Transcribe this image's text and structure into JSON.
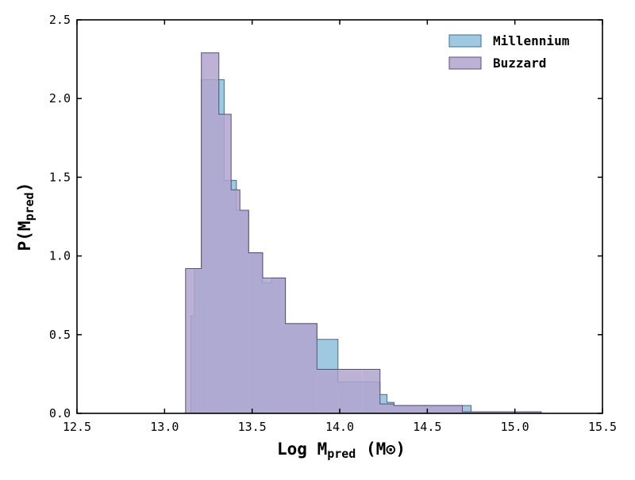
{
  "chart_data": {
    "type": "histogram",
    "xlabel": {
      "main": "Log M",
      "sub": "pred",
      "rest": " (M",
      "sun": "⊙",
      "close": ")"
    },
    "ylabel": {
      "main": "P(M",
      "sub": "pred",
      "close": ")"
    },
    "xlim": [
      12.5,
      15.5
    ],
    "ylim": [
      0.0,
      2.5
    ],
    "xticks": [
      "12.5",
      "13.0",
      "13.5",
      "14.0",
      "14.5",
      "15.0",
      "15.5"
    ],
    "xtick_values": [
      12.5,
      13.0,
      13.5,
      14.0,
      14.5,
      15.0,
      15.5
    ],
    "yticks": [
      "0.0",
      "0.5",
      "1.0",
      "1.5",
      "2.0",
      "2.5"
    ],
    "ytick_values": [
      0.0,
      0.5,
      1.0,
      1.5,
      2.0,
      2.5
    ],
    "grid": false,
    "legend_position": "top-right",
    "series": [
      {
        "name": "Millennium",
        "color": "#87bcd9",
        "edge_color": "#3e6f86",
        "alpha": 0.8,
        "bins": [
          [
            13.15,
            13.17,
            0.62
          ],
          [
            13.17,
            13.21,
            0.92
          ],
          [
            13.21,
            13.28,
            2.12
          ],
          [
            13.28,
            13.34,
            2.12
          ],
          [
            13.34,
            13.41,
            1.48
          ],
          [
            13.41,
            13.48,
            1.29
          ],
          [
            13.48,
            13.56,
            1.02
          ],
          [
            13.56,
            13.61,
            0.83
          ],
          [
            13.61,
            13.69,
            0.86
          ],
          [
            13.69,
            13.87,
            0.57
          ],
          [
            13.87,
            13.99,
            0.47
          ],
          [
            13.99,
            14.13,
            0.2
          ],
          [
            14.13,
            14.23,
            0.2
          ],
          [
            14.23,
            14.27,
            0.12
          ],
          [
            14.27,
            14.31,
            0.07
          ],
          [
            14.31,
            14.7,
            0.05
          ],
          [
            14.7,
            14.75,
            0.05
          ],
          [
            14.75,
            15.15,
            0.01
          ]
        ]
      },
      {
        "name": "Buzzard",
        "color": "#b1a4cf",
        "edge_color": "#5a4f74",
        "alpha": 0.85,
        "bins": [
          [
            13.12,
            13.21,
            0.92
          ],
          [
            13.21,
            13.31,
            2.29
          ],
          [
            13.31,
            13.38,
            1.9
          ],
          [
            13.38,
            13.43,
            1.42
          ],
          [
            13.43,
            13.48,
            1.29
          ],
          [
            13.48,
            13.56,
            1.02
          ],
          [
            13.56,
            13.61,
            0.86
          ],
          [
            13.61,
            13.69,
            0.86
          ],
          [
            13.69,
            13.87,
            0.57
          ],
          [
            13.87,
            13.99,
            0.28
          ],
          [
            13.99,
            14.13,
            0.28
          ],
          [
            14.13,
            14.23,
            0.28
          ],
          [
            14.23,
            14.31,
            0.06
          ],
          [
            14.31,
            14.7,
            0.05
          ],
          [
            14.7,
            15.15,
            0.01
          ]
        ]
      }
    ]
  }
}
